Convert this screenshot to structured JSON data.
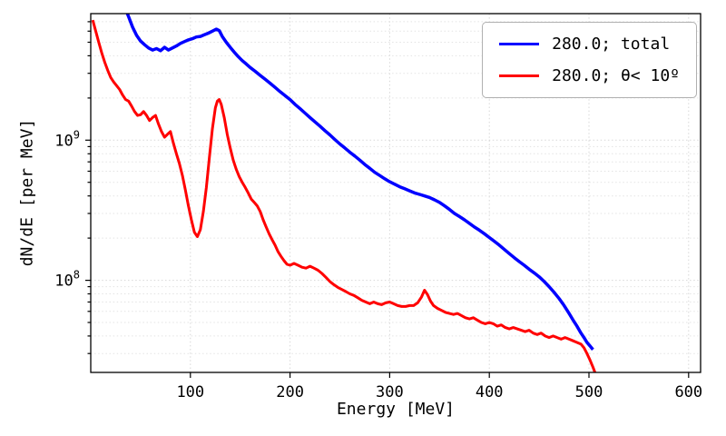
{
  "figure": {
    "xlabel": "Energy [MeV]",
    "ylabel": "dN/dE [per MeV]"
  },
  "chart_data": {
    "type": "line",
    "title": "",
    "xlabel": "Energy [MeV]",
    "ylabel": "dN/dE [per MeV]",
    "xscale": "linear",
    "yscale": "log",
    "xlim": [
      0,
      612
    ],
    "ylim": [
      22000000.0,
      8000000000.0
    ],
    "x_ticks": [
      100,
      200,
      300,
      400,
      500,
      600
    ],
    "y_ticks": [
      {
        "value": 100000000.0,
        "label": "10^8"
      },
      {
        "value": 1000000000.0,
        "label": "10^9"
      }
    ],
    "grid": "both axes, dotted light gray",
    "legend_position": "upper right",
    "series": [
      {
        "name": "280.0; total",
        "color": "#0000ff",
        "linewidth": 3.5,
        "points": [
          [
            34,
            9000000000.0
          ],
          [
            38,
            7600000000.0
          ],
          [
            42,
            6400000000.0
          ],
          [
            46,
            5600000000.0
          ],
          [
            50,
            5100000000.0
          ],
          [
            54,
            4800000000.0
          ],
          [
            58,
            4550000000.0
          ],
          [
            62,
            4400000000.0
          ],
          [
            66,
            4500000000.0
          ],
          [
            70,
            4350000000.0
          ],
          [
            74,
            4600000000.0
          ],
          [
            78,
            4400000000.0
          ],
          [
            82,
            4550000000.0
          ],
          [
            86,
            4700000000.0
          ],
          [
            90,
            4900000000.0
          ],
          [
            94,
            5050000000.0
          ],
          [
            98,
            5200000000.0
          ],
          [
            102,
            5300000000.0
          ],
          [
            106,
            5450000000.0
          ],
          [
            110,
            5500000000.0
          ],
          [
            114,
            5650000000.0
          ],
          [
            118,
            5800000000.0
          ],
          [
            122,
            6000000000.0
          ],
          [
            126,
            6200000000.0
          ],
          [
            129,
            6050000000.0
          ],
          [
            132,
            5500000000.0
          ],
          [
            136,
            5000000000.0
          ],
          [
            140,
            4600000000.0
          ],
          [
            144,
            4250000000.0
          ],
          [
            148,
            3950000000.0
          ],
          [
            152,
            3700000000.0
          ],
          [
            156,
            3500000000.0
          ],
          [
            160,
            3300000000.0
          ],
          [
            165,
            3100000000.0
          ],
          [
            170,
            2900000000.0
          ],
          [
            175,
            2720000000.0
          ],
          [
            180,
            2550000000.0
          ],
          [
            185,
            2380000000.0
          ],
          [
            190,
            2220000000.0
          ],
          [
            195,
            2080000000.0
          ],
          [
            200,
            1950000000.0
          ],
          [
            205,
            1800000000.0
          ],
          [
            210,
            1680000000.0
          ],
          [
            215,
            1560000000.0
          ],
          [
            220,
            1450000000.0
          ],
          [
            225,
            1350000000.0
          ],
          [
            230,
            1260000000.0
          ],
          [
            235,
            1170000000.0
          ],
          [
            240,
            1090000000.0
          ],
          [
            245,
            1010000000.0
          ],
          [
            250,
            940000000.0
          ],
          [
            255,
            880000000.0
          ],
          [
            260,
            820000000.0
          ],
          [
            265,
            770000000.0
          ],
          [
            270,
            720000000.0
          ],
          [
            275,
            670000000.0
          ],
          [
            280,
            630000000.0
          ],
          [
            285,
            590000000.0
          ],
          [
            290,
            560000000.0
          ],
          [
            295,
            530000000.0
          ],
          [
            300,
            505000000.0
          ],
          [
            305,
            485000000.0
          ],
          [
            310,
            465000000.0
          ],
          [
            315,
            450000000.0
          ],
          [
            320,
            435000000.0
          ],
          [
            325,
            420000000.0
          ],
          [
            330,
            410000000.0
          ],
          [
            335,
            400000000.0
          ],
          [
            340,
            390000000.0
          ],
          [
            345,
            375000000.0
          ],
          [
            350,
            360000000.0
          ],
          [
            355,
            340000000.0
          ],
          [
            360,
            320000000.0
          ],
          [
            365,
            300000000.0
          ],
          [
            370,
            285000000.0
          ],
          [
            375,
            270000000.0
          ],
          [
            380,
            255000000.0
          ],
          [
            385,
            240000000.0
          ],
          [
            390,
            228000000.0
          ],
          [
            395,
            215000000.0
          ],
          [
            400,
            202000000.0
          ],
          [
            405,
            190000000.0
          ],
          [
            410,
            178000000.0
          ],
          [
            415,
            166000000.0
          ],
          [
            420,
            155000000.0
          ],
          [
            425,
            145000000.0
          ],
          [
            430,
            136000000.0
          ],
          [
            435,
            128000000.0
          ],
          [
            440,
            120000000.0
          ],
          [
            445,
            113000000.0
          ],
          [
            450,
            106000000.0
          ],
          [
            455,
            98000000.0
          ],
          [
            460,
            90000000.0
          ],
          [
            465,
            82000000.0
          ],
          [
            470,
            74000000.0
          ],
          [
            475,
            66000000.0
          ],
          [
            480,
            58000000.0
          ],
          [
            484,
            52000000.0
          ],
          [
            488,
            47000000.0
          ],
          [
            492,
            42000000.0
          ],
          [
            495,
            39000000.0
          ],
          [
            498,
            36000000.0
          ],
          [
            501,
            34000000.0
          ],
          [
            504,
            32000000.0
          ]
        ]
      },
      {
        "name": "280.0; θ< 10º",
        "color": "#ff0000",
        "linewidth": 3.0,
        "points": [
          [
            2,
            7200000000.0
          ],
          [
            5,
            6000000000.0
          ],
          [
            8,
            5000000000.0
          ],
          [
            11,
            4200000000.0
          ],
          [
            14,
            3600000000.0
          ],
          [
            17,
            3150000000.0
          ],
          [
            20,
            2800000000.0
          ],
          [
            23,
            2600000000.0
          ],
          [
            26,
            2450000000.0
          ],
          [
            29,
            2300000000.0
          ],
          [
            32,
            2100000000.0
          ],
          [
            35,
            1950000000.0
          ],
          [
            38,
            1900000000.0
          ],
          [
            41,
            1750000000.0
          ],
          [
            44,
            1600000000.0
          ],
          [
            47,
            1500000000.0
          ],
          [
            50,
            1520000000.0
          ],
          [
            53,
            1600000000.0
          ],
          [
            56,
            1500000000.0
          ],
          [
            59,
            1380000000.0
          ],
          [
            62,
            1450000000.0
          ],
          [
            65,
            1500000000.0
          ],
          [
            68,
            1300000000.0
          ],
          [
            71,
            1150000000.0
          ],
          [
            74,
            1050000000.0
          ],
          [
            77,
            1100000000.0
          ],
          [
            80,
            1150000000.0
          ],
          [
            83,
            950000000.0
          ],
          [
            86,
            800000000.0
          ],
          [
            89,
            680000000.0
          ],
          [
            92,
            560000000.0
          ],
          [
            95,
            440000000.0
          ],
          [
            98,
            340000000.0
          ],
          [
            101,
            270000000.0
          ],
          [
            104,
            220000000.0
          ],
          [
            107,
            205000000.0
          ],
          [
            110,
            230000000.0
          ],
          [
            113,
            310000000.0
          ],
          [
            116,
            460000000.0
          ],
          [
            119,
            750000000.0
          ],
          [
            122,
            1200000000.0
          ],
          [
            125,
            1700000000.0
          ],
          [
            127,
            1900000000.0
          ],
          [
            129,
            1950000000.0
          ],
          [
            131,
            1800000000.0
          ],
          [
            134,
            1450000000.0
          ],
          [
            137,
            1100000000.0
          ],
          [
            140,
            880000000.0
          ],
          [
            143,
            720000000.0
          ],
          [
            146,
            620000000.0
          ],
          [
            149,
            550000000.0
          ],
          [
            152,
            500000000.0
          ],
          [
            155,
            460000000.0
          ],
          [
            158,
            420000000.0
          ],
          [
            161,
            380000000.0
          ],
          [
            164,
            360000000.0
          ],
          [
            167,
            340000000.0
          ],
          [
            170,
            310000000.0
          ],
          [
            173,
            270000000.0
          ],
          [
            176,
            240000000.0
          ],
          [
            179,
            215000000.0
          ],
          [
            182,
            195000000.0
          ],
          [
            185,
            178000000.0
          ],
          [
            188,
            160000000.0
          ],
          [
            191,
            148000000.0
          ],
          [
            194,
            138000000.0
          ],
          [
            197,
            130000000.0
          ],
          [
            200,
            128000000.0
          ],
          [
            204,
            132000000.0
          ],
          [
            208,
            128000000.0
          ],
          [
            212,
            124000000.0
          ],
          [
            216,
            122000000.0
          ],
          [
            220,
            126000000.0
          ],
          [
            224,
            122000000.0
          ],
          [
            228,
            118000000.0
          ],
          [
            232,
            112000000.0
          ],
          [
            236,
            105000000.0
          ],
          [
            240,
            98000000.0
          ],
          [
            244,
            93000000.0
          ],
          [
            248,
            89000000.0
          ],
          [
            252,
            86000000.0
          ],
          [
            256,
            83000000.0
          ],
          [
            260,
            80000000.0
          ],
          [
            264,
            78000000.0
          ],
          [
            268,
            75000000.0
          ],
          [
            272,
            72000000.0
          ],
          [
            276,
            70000000.0
          ],
          [
            280,
            68000000.0
          ],
          [
            284,
            70000000.0
          ],
          [
            288,
            68000000.0
          ],
          [
            292,
            67000000.0
          ],
          [
            296,
            69000000.0
          ],
          [
            300,
            70000000.0
          ],
          [
            304,
            68000000.0
          ],
          [
            308,
            66000000.0
          ],
          [
            312,
            65000000.0
          ],
          [
            316,
            65000000.0
          ],
          [
            320,
            66000000.0
          ],
          [
            324,
            66000000.0
          ],
          [
            328,
            69000000.0
          ],
          [
            332,
            76000000.0
          ],
          [
            335,
            85000000.0
          ],
          [
            338,
            79000000.0
          ],
          [
            341,
            71000000.0
          ],
          [
            344,
            66000000.0
          ],
          [
            348,
            63000000.0
          ],
          [
            352,
            61000000.0
          ],
          [
            356,
            59000000.0
          ],
          [
            360,
            58000000.0
          ],
          [
            364,
            57000000.0
          ],
          [
            368,
            58000000.0
          ],
          [
            372,
            56000000.0
          ],
          [
            376,
            54000000.0
          ],
          [
            380,
            53000000.0
          ],
          [
            384,
            54000000.0
          ],
          [
            388,
            52000000.0
          ],
          [
            392,
            50000000.0
          ],
          [
            396,
            49000000.0
          ],
          [
            400,
            50000000.0
          ],
          [
            404,
            49000000.0
          ],
          [
            408,
            47000000.0
          ],
          [
            412,
            48000000.0
          ],
          [
            416,
            46000000.0
          ],
          [
            420,
            45000000.0
          ],
          [
            424,
            46000000.0
          ],
          [
            428,
            45000000.0
          ],
          [
            432,
            44000000.0
          ],
          [
            436,
            43000000.0
          ],
          [
            440,
            44000000.0
          ],
          [
            444,
            42000000.0
          ],
          [
            448,
            41000000.0
          ],
          [
            452,
            42000000.0
          ],
          [
            456,
            40000000.0
          ],
          [
            460,
            39000000.0
          ],
          [
            464,
            40000000.0
          ],
          [
            468,
            39000000.0
          ],
          [
            472,
            38000000.0
          ],
          [
            476,
            39000000.0
          ],
          [
            480,
            38000000.0
          ],
          [
            484,
            37000000.0
          ],
          [
            488,
            36000000.0
          ],
          [
            492,
            35000000.0
          ],
          [
            495,
            33000000.0
          ],
          [
            498,
            30000000.0
          ],
          [
            501,
            27000000.0
          ],
          [
            504,
            24000000.0
          ],
          [
            506,
            22000000.0
          ]
        ]
      }
    ]
  }
}
